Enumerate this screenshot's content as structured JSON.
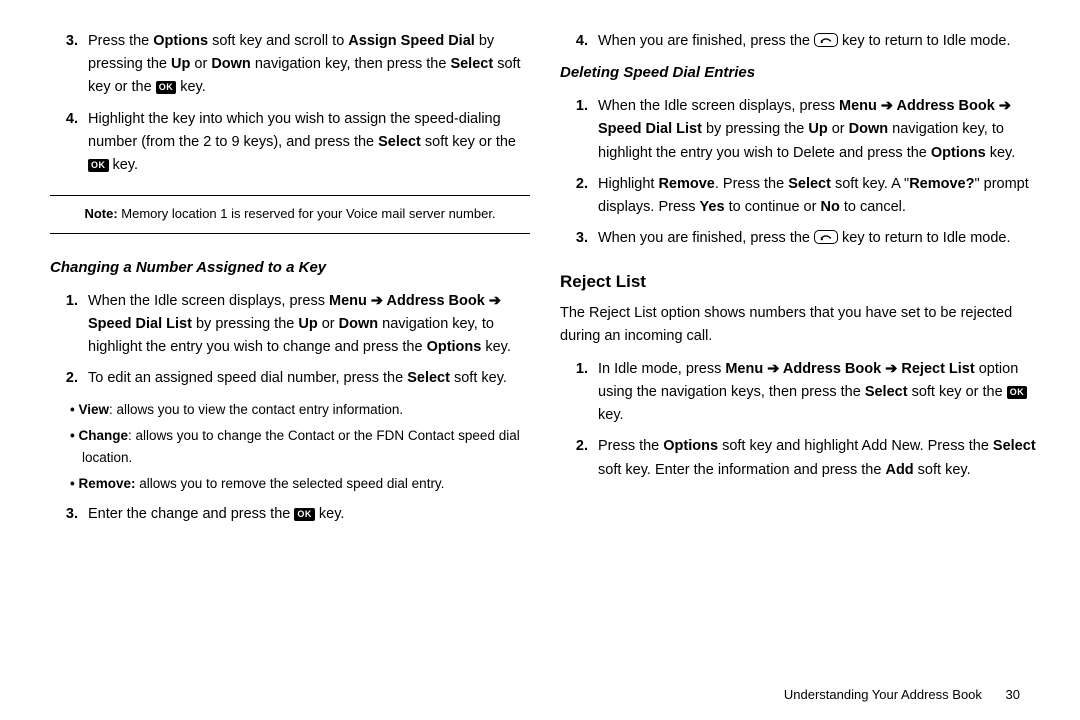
{
  "left": {
    "steps_a": [
      {
        "n": "3.",
        "html": "Press the <b>Options</b> soft key and scroll to <b>Assign Speed Dial</b> by pressing the <b>Up</b> or <b>Down</b> navigation key, then press the <b>Select</b> soft key or the {OK} key."
      },
      {
        "n": "4.",
        "html": "Highlight the key into which you wish to assign the speed-dialing number (from the 2 to 9 keys), and press the <b>Select</b> soft key or the {OK} key."
      }
    ],
    "note": "<b>Note:</b> Memory location 1 is reserved for your Voice mail server number.",
    "subheading": "Changing a Number Assigned to a Key",
    "steps_b": [
      {
        "n": "1.",
        "html": "When the Idle screen displays, press <b>Menu ➔ Address Book ➔ Speed Dial List</b> by pressing the <b>Up</b> or <b>Down</b> navigation key, to highlight the entry you wish to change and press the <b>Options</b> key."
      },
      {
        "n": "2.",
        "html": "To edit an assigned speed dial number, press the <b>Select</b> soft key."
      }
    ],
    "bullets": [
      "<b>View</b>: allows you to view the contact entry information.",
      "<b>Change</b>: allows you to change the Contact or the FDN Contact speed dial location.",
      "<b>Remove:</b> allows you to remove the selected speed dial entry."
    ],
    "steps_c": [
      {
        "n": "3.",
        "html": "Enter the change and press the {OK} key."
      }
    ]
  },
  "right": {
    "steps_a": [
      {
        "n": "4.",
        "html": "When you are finished, press the {END} key to return to Idle mode."
      }
    ],
    "subheading": "Deleting Speed Dial Entries",
    "steps_b": [
      {
        "n": "1.",
        "html": "When the Idle screen displays, press <b>Menu ➔ Address Book ➔ Speed Dial List</b> by pressing the <b>Up</b> or <b>Down</b> navigation key, to highlight the entry you wish to Delete and press the <b>Options</b> key."
      },
      {
        "n": "2.",
        "html": "Highlight <b>Remove</b>. Press the <b>Select</b> soft key. A \"<b>Remove?</b>\" prompt displays. Press <b>Yes</b> to continue or <b>No</b> to cancel."
      },
      {
        "n": "3.",
        "html": "When you are finished, press the {END} key to return to Idle mode."
      }
    ],
    "section_heading": "Reject List",
    "intro": "The Reject List option shows numbers that you have set to be rejected during an incoming call.",
    "steps_c": [
      {
        "n": "1.",
        "html": "In Idle mode, press <b>Menu ➔ Address Book ➔ Reject List</b> option using the navigation keys, then press the <b>Select</b> soft key or the {OK} key."
      },
      {
        "n": "2.",
        "html": "Press the <b>Options</b> soft key and highlight Add New. Press the <b>Select</b> soft key. Enter the information and press the <b>Add</b> soft key."
      }
    ]
  },
  "footer": {
    "title": "Understanding Your Address Book",
    "page": "30"
  },
  "icons": {
    "ok": "OK",
    "end_svg": "<svg viewBox='0 0 20 14'><path d='M3 9 Q10 2 17 9' stroke='#000' stroke-width='2' fill='none'/><circle cx='4' cy='10' r='1.6' fill='#000'/></svg>"
  }
}
